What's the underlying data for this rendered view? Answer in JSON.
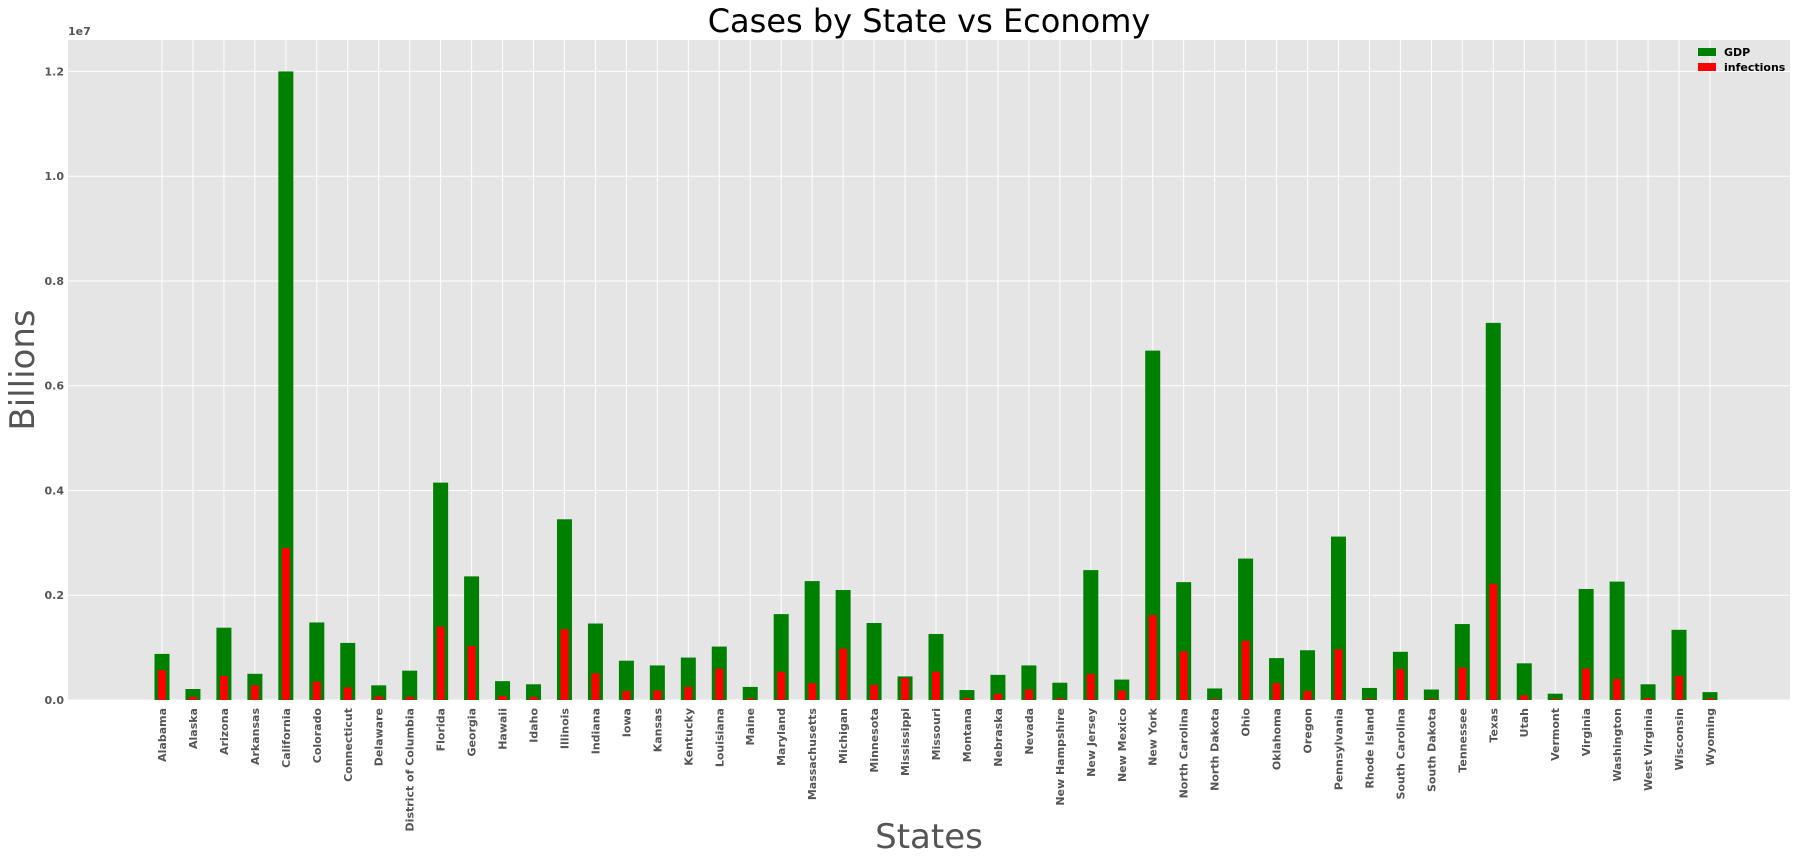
{
  "chart_data": {
    "type": "bar",
    "title": "Cases by State vs Economy",
    "xlabel": "States",
    "ylabel": "Billions",
    "y_offset_label": "1e7",
    "ylim": [
      0,
      1.26
    ],
    "yticks": [
      "0.0",
      "0.2",
      "0.4",
      "0.6",
      "0.8",
      "1.0",
      "1.2"
    ],
    "grid": true,
    "legend_position": "top-right",
    "categories": [
      "Alabama",
      "Alaska",
      "Arizona",
      "Arkansas",
      "California",
      "Colorado",
      "Connecticut",
      "Delaware",
      "District of Columbia",
      "Florida",
      "Georgia",
      "Hawaii",
      "Idaho",
      "Illinois",
      "Indiana",
      "Iowa",
      "Kansas",
      "Kentucky",
      "Louisiana",
      "Maine",
      "Maryland",
      "Massachusetts",
      "Michigan",
      "Minnesota",
      "Mississippi",
      "Missouri",
      "Montana",
      "Nebraska",
      "Nevada",
      "New Hampshire",
      "New Jersey",
      "New Mexico",
      "New York",
      "North Carolina",
      "North Dakota",
      "Ohio",
      "Oklahoma",
      "Oregon",
      "Pennsylvania",
      "Rhode Island",
      "South Carolina",
      "South Dakota",
      "Tennessee",
      "Texas",
      "Utah",
      "Vermont",
      "Virginia",
      "Washington",
      "West Virginia",
      "Wisconsin",
      "Wyoming"
    ],
    "series": [
      {
        "name": "GDP",
        "color": "#008000",
        "values": [
          0.088,
          0.021,
          0.138,
          0.05,
          1.2,
          0.148,
          0.109,
          0.028,
          0.056,
          0.415,
          0.236,
          0.036,
          0.03,
          0.345,
          0.146,
          0.075,
          0.066,
          0.081,
          0.102,
          0.025,
          0.164,
          0.227,
          0.21,
          0.147,
          0.045,
          0.126,
          0.019,
          0.048,
          0.066,
          0.033,
          0.248,
          0.039,
          0.667,
          0.225,
          0.022,
          0.27,
          0.08,
          0.095,
          0.312,
          0.023,
          0.092,
          0.02,
          0.145,
          0.72,
          0.07,
          0.012,
          0.212,
          0.226,
          0.03,
          0.134,
          0.015
        ]
      },
      {
        "name": "infections",
        "color": "#ff0000",
        "values": [
          0.057,
          0.006,
          0.046,
          0.028,
          0.29,
          0.035,
          0.024,
          0.007,
          0.006,
          0.14,
          0.103,
          0.008,
          0.006,
          0.135,
          0.051,
          0.017,
          0.018,
          0.025,
          0.06,
          0.003,
          0.054,
          0.032,
          0.098,
          0.029,
          0.042,
          0.054,
          0.004,
          0.012,
          0.02,
          0.003,
          0.05,
          0.018,
          0.162,
          0.093,
          0.002,
          0.113,
          0.032,
          0.017,
          0.097,
          0.002,
          0.059,
          0.002,
          0.062,
          0.222,
          0.009,
          0.002,
          0.06,
          0.04,
          0.004,
          0.046,
          0.003
        ]
      }
    ]
  }
}
